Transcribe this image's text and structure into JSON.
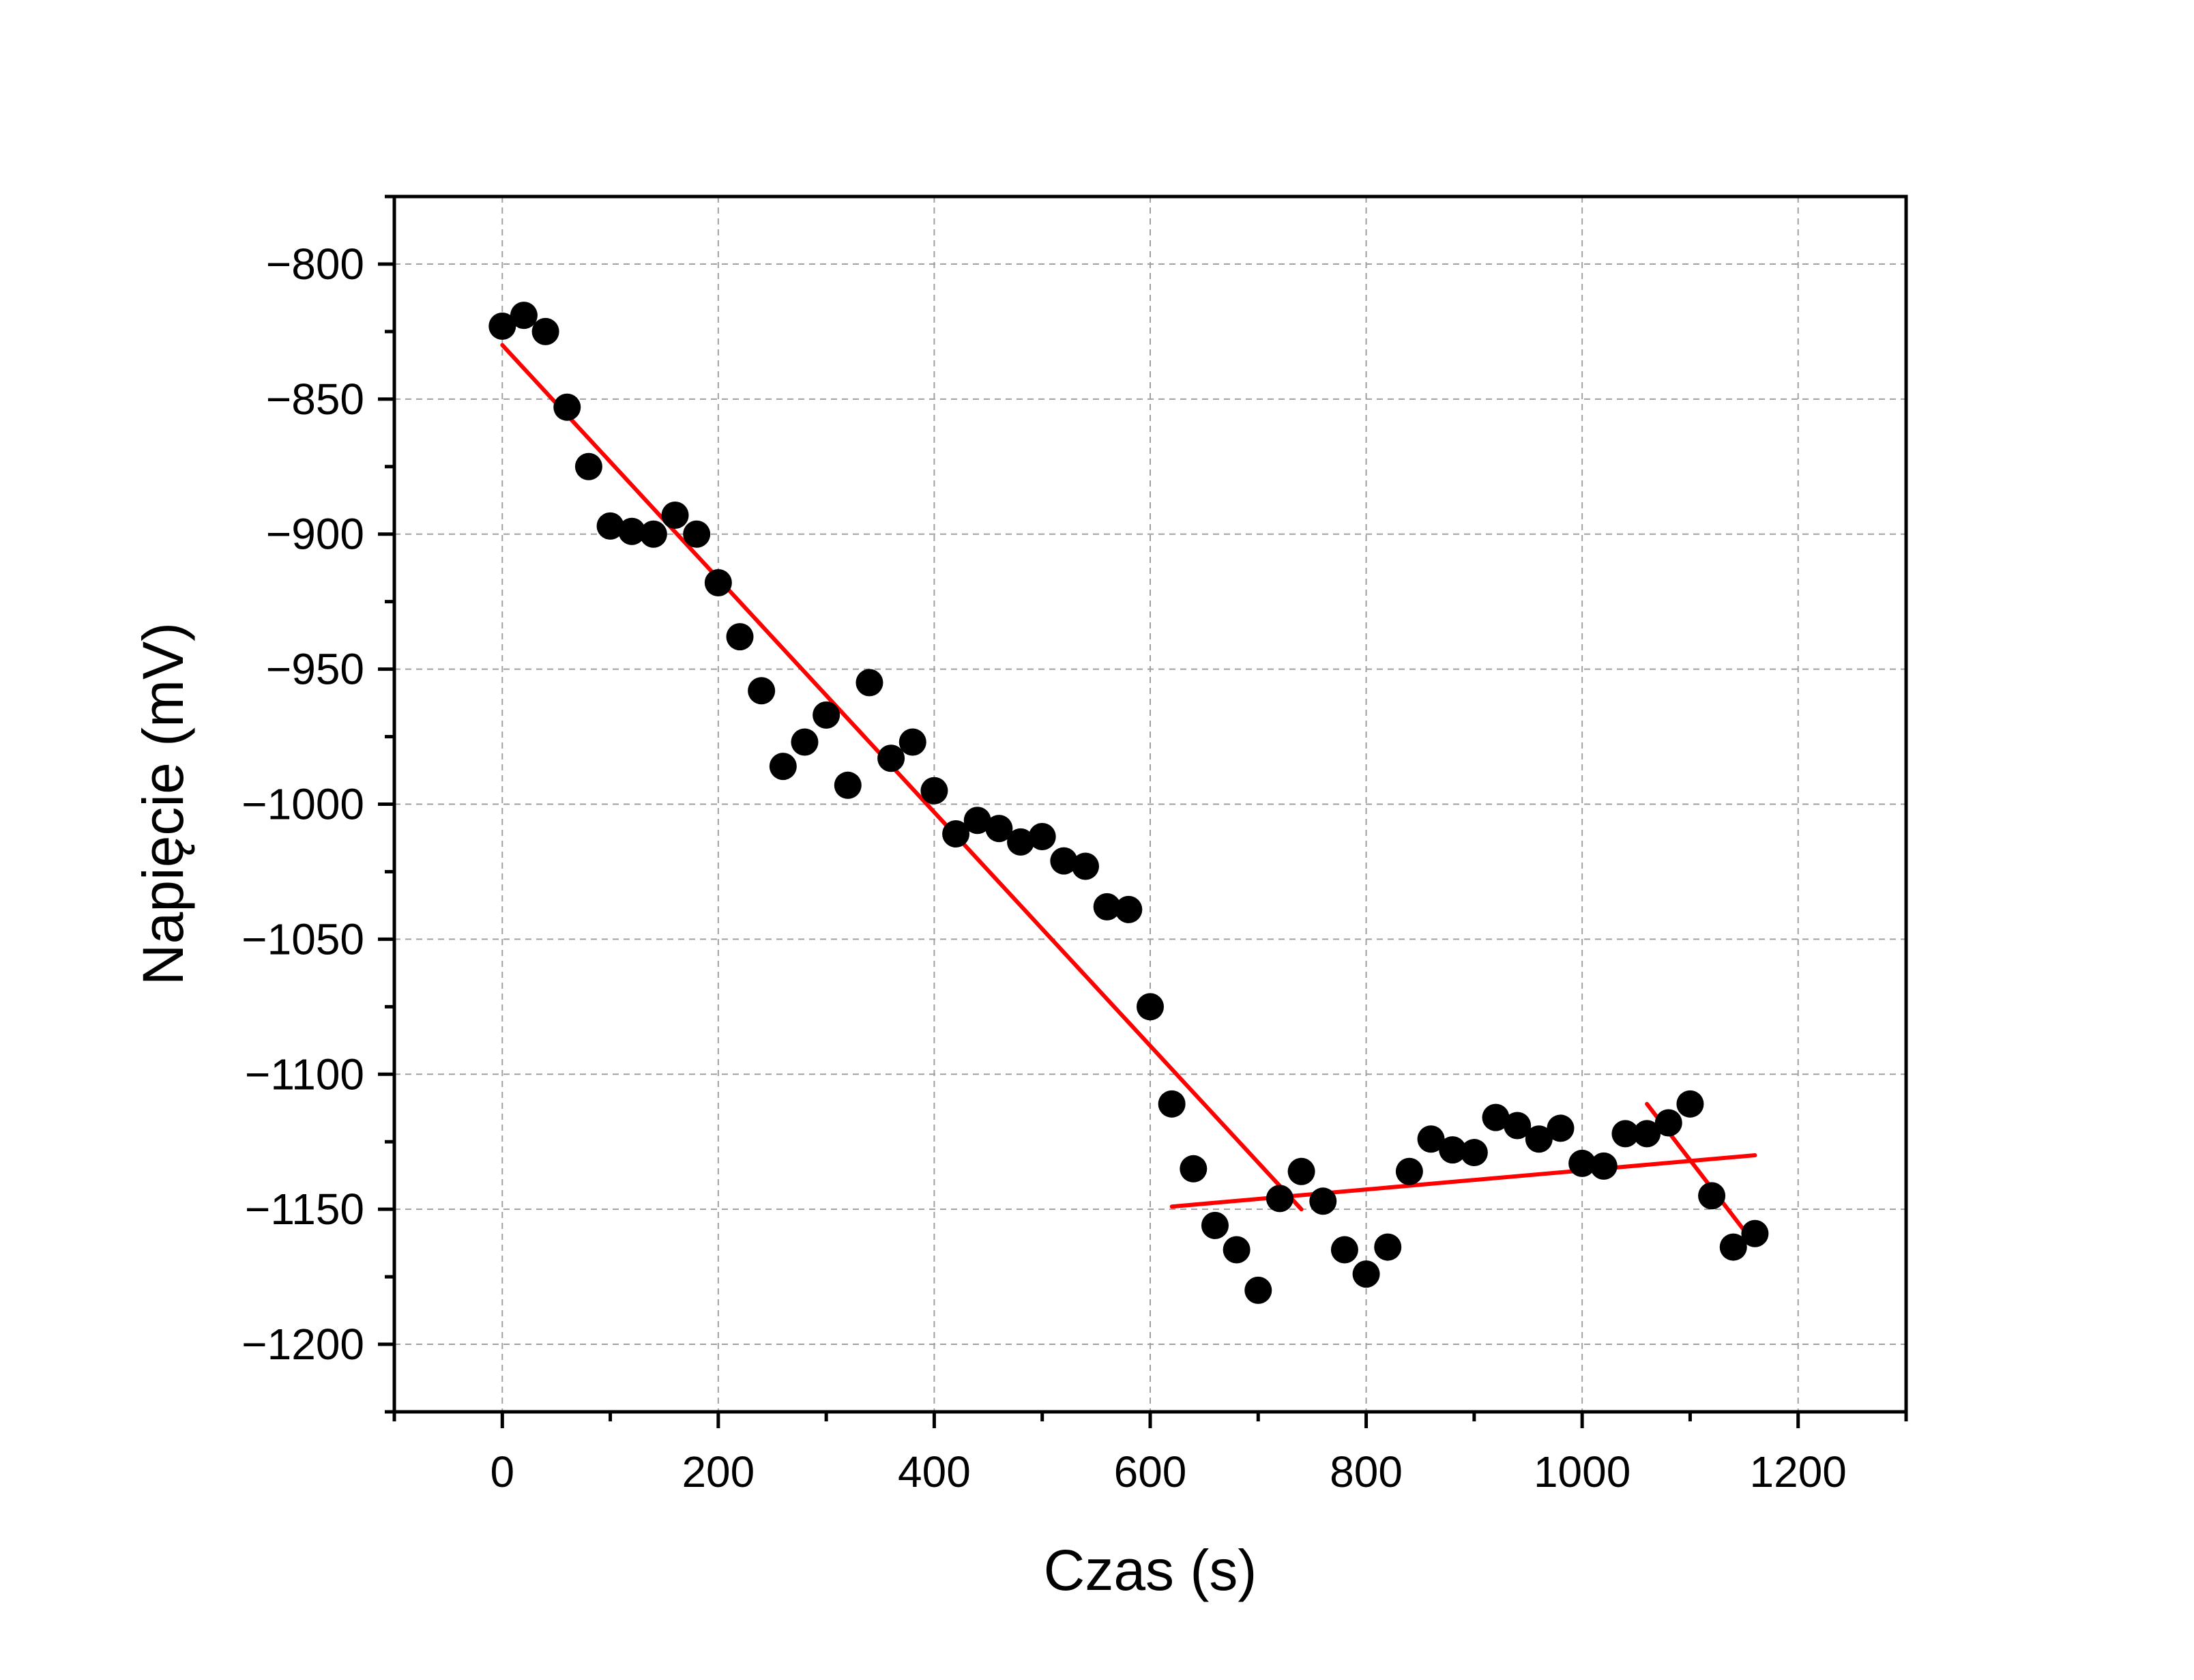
{
  "chart_data": {
    "type": "scatter",
    "title": "",
    "xlabel": "Czas (s)",
    "ylabel": "Napięcie (mV)",
    "xlim": [
      -100,
      1300
    ],
    "ylim": [
      -1225,
      -775
    ],
    "xticks": [
      0,
      200,
      400,
      600,
      800,
      1000,
      1200
    ],
    "yticks": [
      -800,
      -850,
      -900,
      -950,
      -1000,
      -1050,
      -1100,
      -1150,
      -1200
    ],
    "xtick_labels": [
      "0",
      "200",
      "400",
      "600",
      "800",
      "1000",
      "1200"
    ],
    "ytick_labels": [
      "−800",
      "−850",
      "−900",
      "−950",
      "−1000",
      "−1050",
      "−1100",
      "−1150",
      "−1200"
    ],
    "grid": true,
    "marker_color": "#000000",
    "fit_color": "#ff0000",
    "series": [
      {
        "type": "scatter",
        "x": [
          0,
          20,
          40,
          60,
          80,
          100,
          120,
          140,
          160,
          180,
          200,
          220,
          240,
          260,
          280,
          300,
          320,
          340,
          360,
          380,
          400,
          420,
          440,
          460,
          480,
          500,
          520,
          540,
          560,
          580,
          600,
          620,
          640,
          660,
          680,
          700,
          720,
          740,
          760,
          780,
          800,
          820,
          840,
          860,
          880,
          900,
          920,
          940,
          960,
          980,
          1000,
          1020,
          1040,
          1060,
          1080,
          1100,
          1120,
          1140,
          1160
        ],
        "y": [
          -823,
          -819,
          -825,
          -853,
          -875,
          -897,
          -899,
          -900,
          -893,
          -900,
          -918,
          -938,
          -958,
          -986,
          -977,
          -967,
          -993,
          -955,
          -983,
          -977,
          -995,
          -1011,
          -1006,
          -1009,
          -1014,
          -1012,
          -1021,
          -1023,
          -1038,
          -1039,
          -1075,
          -1111,
          -1135,
          -1156,
          -1165,
          -1180,
          -1146,
          -1136,
          -1147,
          -1165,
          -1174,
          -1164,
          -1136,
          -1124,
          -1128,
          -1129,
          -1116,
          -1119,
          -1124,
          -1120,
          -1133,
          -1134,
          -1122,
          -1122,
          -1118,
          -1111,
          -1145,
          -1164,
          -1159
        ]
      },
      {
        "type": "line",
        "x": [
          0,
          740
        ],
        "y": [
          -830,
          -1150
        ]
      },
      {
        "type": "line",
        "x": [
          620,
          1160
        ],
        "y": [
          -1149,
          -1130
        ]
      },
      {
        "type": "line",
        "x": [
          1060,
          1160
        ],
        "y": [
          -1111,
          -1163
        ]
      }
    ]
  }
}
